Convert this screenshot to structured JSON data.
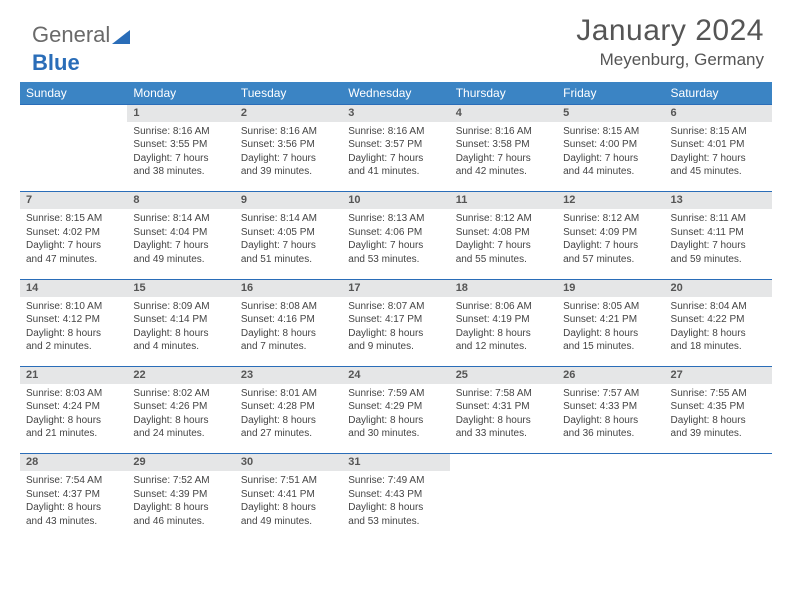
{
  "logo": {
    "part1": "General",
    "part2": "Blue"
  },
  "header": {
    "month": "January 2024",
    "location": "Meyenburg, Germany"
  },
  "colors": {
    "header_bg": "#3b84c4",
    "header_text": "#ffffff",
    "daynum_bg": "#e5e6e7",
    "row_border": "#2a6db8",
    "body_text": "#444444",
    "title_text": "#555555"
  },
  "day_headers": [
    "Sunday",
    "Monday",
    "Tuesday",
    "Wednesday",
    "Thursday",
    "Friday",
    "Saturday"
  ],
  "weeks": [
    {
      "nums": [
        "",
        "1",
        "2",
        "3",
        "4",
        "5",
        "6"
      ],
      "cells": [
        {
          "sunrise": "",
          "sunset": "",
          "daylight1": "",
          "daylight2": ""
        },
        {
          "sunrise": "Sunrise: 8:16 AM",
          "sunset": "Sunset: 3:55 PM",
          "daylight1": "Daylight: 7 hours",
          "daylight2": "and 38 minutes."
        },
        {
          "sunrise": "Sunrise: 8:16 AM",
          "sunset": "Sunset: 3:56 PM",
          "daylight1": "Daylight: 7 hours",
          "daylight2": "and 39 minutes."
        },
        {
          "sunrise": "Sunrise: 8:16 AM",
          "sunset": "Sunset: 3:57 PM",
          "daylight1": "Daylight: 7 hours",
          "daylight2": "and 41 minutes."
        },
        {
          "sunrise": "Sunrise: 8:16 AM",
          "sunset": "Sunset: 3:58 PM",
          "daylight1": "Daylight: 7 hours",
          "daylight2": "and 42 minutes."
        },
        {
          "sunrise": "Sunrise: 8:15 AM",
          "sunset": "Sunset: 4:00 PM",
          "daylight1": "Daylight: 7 hours",
          "daylight2": "and 44 minutes."
        },
        {
          "sunrise": "Sunrise: 8:15 AM",
          "sunset": "Sunset: 4:01 PM",
          "daylight1": "Daylight: 7 hours",
          "daylight2": "and 45 minutes."
        }
      ]
    },
    {
      "nums": [
        "7",
        "8",
        "9",
        "10",
        "11",
        "12",
        "13"
      ],
      "cells": [
        {
          "sunrise": "Sunrise: 8:15 AM",
          "sunset": "Sunset: 4:02 PM",
          "daylight1": "Daylight: 7 hours",
          "daylight2": "and 47 minutes."
        },
        {
          "sunrise": "Sunrise: 8:14 AM",
          "sunset": "Sunset: 4:04 PM",
          "daylight1": "Daylight: 7 hours",
          "daylight2": "and 49 minutes."
        },
        {
          "sunrise": "Sunrise: 8:14 AM",
          "sunset": "Sunset: 4:05 PM",
          "daylight1": "Daylight: 7 hours",
          "daylight2": "and 51 minutes."
        },
        {
          "sunrise": "Sunrise: 8:13 AM",
          "sunset": "Sunset: 4:06 PM",
          "daylight1": "Daylight: 7 hours",
          "daylight2": "and 53 minutes."
        },
        {
          "sunrise": "Sunrise: 8:12 AM",
          "sunset": "Sunset: 4:08 PM",
          "daylight1": "Daylight: 7 hours",
          "daylight2": "and 55 minutes."
        },
        {
          "sunrise": "Sunrise: 8:12 AM",
          "sunset": "Sunset: 4:09 PM",
          "daylight1": "Daylight: 7 hours",
          "daylight2": "and 57 minutes."
        },
        {
          "sunrise": "Sunrise: 8:11 AM",
          "sunset": "Sunset: 4:11 PM",
          "daylight1": "Daylight: 7 hours",
          "daylight2": "and 59 minutes."
        }
      ]
    },
    {
      "nums": [
        "14",
        "15",
        "16",
        "17",
        "18",
        "19",
        "20"
      ],
      "cells": [
        {
          "sunrise": "Sunrise: 8:10 AM",
          "sunset": "Sunset: 4:12 PM",
          "daylight1": "Daylight: 8 hours",
          "daylight2": "and 2 minutes."
        },
        {
          "sunrise": "Sunrise: 8:09 AM",
          "sunset": "Sunset: 4:14 PM",
          "daylight1": "Daylight: 8 hours",
          "daylight2": "and 4 minutes."
        },
        {
          "sunrise": "Sunrise: 8:08 AM",
          "sunset": "Sunset: 4:16 PM",
          "daylight1": "Daylight: 8 hours",
          "daylight2": "and 7 minutes."
        },
        {
          "sunrise": "Sunrise: 8:07 AM",
          "sunset": "Sunset: 4:17 PM",
          "daylight1": "Daylight: 8 hours",
          "daylight2": "and 9 minutes."
        },
        {
          "sunrise": "Sunrise: 8:06 AM",
          "sunset": "Sunset: 4:19 PM",
          "daylight1": "Daylight: 8 hours",
          "daylight2": "and 12 minutes."
        },
        {
          "sunrise": "Sunrise: 8:05 AM",
          "sunset": "Sunset: 4:21 PM",
          "daylight1": "Daylight: 8 hours",
          "daylight2": "and 15 minutes."
        },
        {
          "sunrise": "Sunrise: 8:04 AM",
          "sunset": "Sunset: 4:22 PM",
          "daylight1": "Daylight: 8 hours",
          "daylight2": "and 18 minutes."
        }
      ]
    },
    {
      "nums": [
        "21",
        "22",
        "23",
        "24",
        "25",
        "26",
        "27"
      ],
      "cells": [
        {
          "sunrise": "Sunrise: 8:03 AM",
          "sunset": "Sunset: 4:24 PM",
          "daylight1": "Daylight: 8 hours",
          "daylight2": "and 21 minutes."
        },
        {
          "sunrise": "Sunrise: 8:02 AM",
          "sunset": "Sunset: 4:26 PM",
          "daylight1": "Daylight: 8 hours",
          "daylight2": "and 24 minutes."
        },
        {
          "sunrise": "Sunrise: 8:01 AM",
          "sunset": "Sunset: 4:28 PM",
          "daylight1": "Daylight: 8 hours",
          "daylight2": "and 27 minutes."
        },
        {
          "sunrise": "Sunrise: 7:59 AM",
          "sunset": "Sunset: 4:29 PM",
          "daylight1": "Daylight: 8 hours",
          "daylight2": "and 30 minutes."
        },
        {
          "sunrise": "Sunrise: 7:58 AM",
          "sunset": "Sunset: 4:31 PM",
          "daylight1": "Daylight: 8 hours",
          "daylight2": "and 33 minutes."
        },
        {
          "sunrise": "Sunrise: 7:57 AM",
          "sunset": "Sunset: 4:33 PM",
          "daylight1": "Daylight: 8 hours",
          "daylight2": "and 36 minutes."
        },
        {
          "sunrise": "Sunrise: 7:55 AM",
          "sunset": "Sunset: 4:35 PM",
          "daylight1": "Daylight: 8 hours",
          "daylight2": "and 39 minutes."
        }
      ]
    },
    {
      "nums": [
        "28",
        "29",
        "30",
        "31",
        "",
        "",
        ""
      ],
      "cells": [
        {
          "sunrise": "Sunrise: 7:54 AM",
          "sunset": "Sunset: 4:37 PM",
          "daylight1": "Daylight: 8 hours",
          "daylight2": "and 43 minutes."
        },
        {
          "sunrise": "Sunrise: 7:52 AM",
          "sunset": "Sunset: 4:39 PM",
          "daylight1": "Daylight: 8 hours",
          "daylight2": "and 46 minutes."
        },
        {
          "sunrise": "Sunrise: 7:51 AM",
          "sunset": "Sunset: 4:41 PM",
          "daylight1": "Daylight: 8 hours",
          "daylight2": "and 49 minutes."
        },
        {
          "sunrise": "Sunrise: 7:49 AM",
          "sunset": "Sunset: 4:43 PM",
          "daylight1": "Daylight: 8 hours",
          "daylight2": "and 53 minutes."
        },
        {
          "sunrise": "",
          "sunset": "",
          "daylight1": "",
          "daylight2": ""
        },
        {
          "sunrise": "",
          "sunset": "",
          "daylight1": "",
          "daylight2": ""
        },
        {
          "sunrise": "",
          "sunset": "",
          "daylight1": "",
          "daylight2": ""
        }
      ]
    }
  ]
}
